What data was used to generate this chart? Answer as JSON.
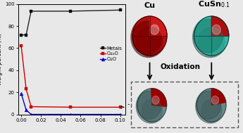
{
  "x": [
    0.0,
    0.005,
    0.01,
    0.05,
    0.1
  ],
  "metals": [
    72.0,
    72.0,
    93.5,
    93.5,
    94.5
  ],
  "cu2o": [
    62.0,
    23.0,
    7.0,
    6.5,
    6.5
  ],
  "cuo": [
    19.0,
    4.0,
    0.0,
    0.0,
    0.0
  ],
  "ylabel": "Weight percent (%)",
  "ylim": [
    0,
    100
  ],
  "xlim": [
    -0.003,
    0.105
  ],
  "xticks": [
    0.0,
    0.02,
    0.04,
    0.06,
    0.08,
    0.1
  ],
  "legend_metals": "Metals",
  "legend_cu2o": "Cu₂O",
  "legend_cuo": "CuO",
  "color_metals": "#222222",
  "color_cu2o": "#cc0000",
  "color_cuo": "#0000cc",
  "oxidation_text": "Oxidation",
  "bg_color": "#e8e8e8"
}
